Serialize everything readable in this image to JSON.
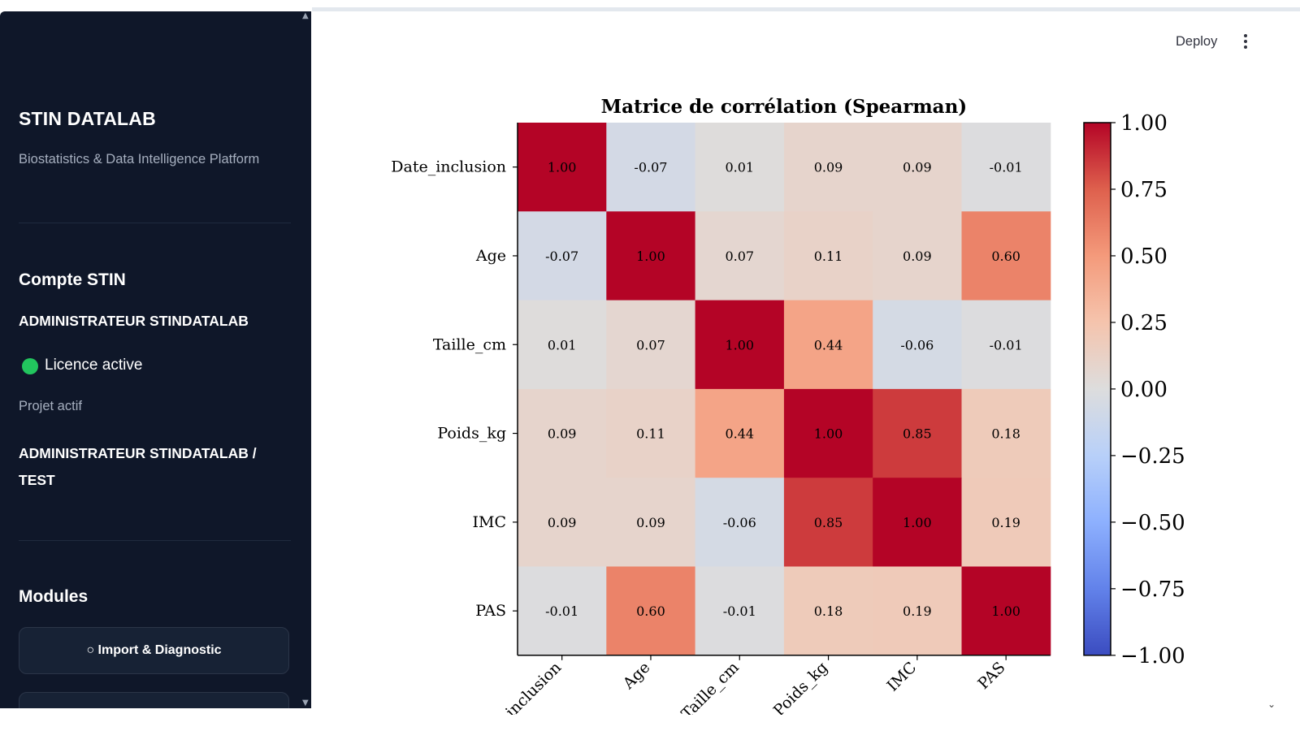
{
  "sidebar": {
    "title": "STIN DATALAB",
    "subtitle": "Biostatistics & Data Intelligence Platform",
    "account_heading": "Compte STIN",
    "account_name": "ADMINISTRATEUR STINDATALAB",
    "licence_status": "Licence active",
    "licence_color": "#22c55e",
    "project_label": "Projet actif",
    "project_name": "ADMINISTRATEUR STINDATALAB / TEST",
    "modules_heading": "Modules",
    "modules": [
      {
        "label": "○ Import & Diagnostic"
      }
    ]
  },
  "header": {
    "deploy_label": "Deploy",
    "menu_icon": "vertical-ellipsis-icon"
  },
  "chart_data": {
    "type": "heatmap",
    "title": "Matrice de corrélation (Spearman)",
    "rows": [
      "Date_inclusion",
      "Age",
      "Taille_cm",
      "Poids_kg",
      "IMC",
      "PAS"
    ],
    "cols": [
      "Date_inclusion",
      "Age",
      "Taille_cm",
      "Poids_kg",
      "IMC",
      "PAS"
    ],
    "values": [
      [
        1.0,
        -0.07,
        0.01,
        0.09,
        0.09,
        -0.01
      ],
      [
        -0.07,
        1.0,
        0.07,
        0.11,
        0.09,
        0.6
      ],
      [
        0.01,
        0.07,
        1.0,
        0.44,
        -0.06,
        -0.01
      ],
      [
        0.09,
        0.11,
        0.44,
        1.0,
        0.85,
        0.18
      ],
      [
        0.09,
        0.09,
        -0.06,
        0.85,
        1.0,
        0.19
      ],
      [
        -0.01,
        0.6,
        -0.01,
        0.18,
        0.19,
        1.0
      ]
    ],
    "colormap": "coolwarm",
    "vmin": -1.0,
    "vmax": 1.0,
    "colorbar_ticks": [
      1.0,
      0.75,
      0.5,
      0.25,
      0.0,
      -0.25,
      -0.5,
      -0.75,
      -1.0
    ],
    "colorbar_tick_labels": [
      "1.00",
      "0.75",
      "0.50",
      "0.25",
      "0.00",
      "−0.25",
      "−0.50",
      "−0.75",
      "−1.00"
    ],
    "value_format": "2 decimals"
  }
}
